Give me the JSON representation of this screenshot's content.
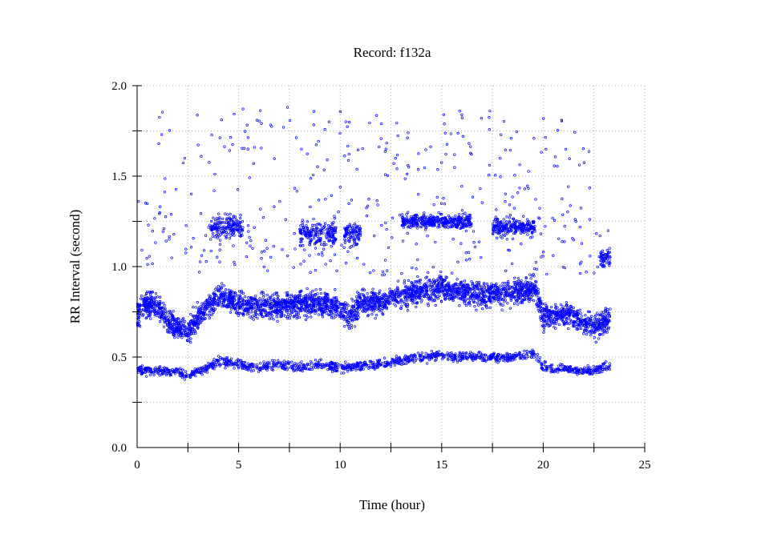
{
  "chart_data": {
    "type": "scatter",
    "title": "Record:  f132a",
    "xlabel": "Time (hour)",
    "ylabel": "RR Interval (second)",
    "xlim": [
      0,
      25
    ],
    "ylim": [
      0.0,
      2.0
    ],
    "x_ticks": [
      0,
      5,
      10,
      15,
      20,
      25
    ],
    "x_tick_labels": [
      "0",
      "5",
      "10",
      "15",
      "20",
      "25"
    ],
    "y_ticks": [
      0.0,
      0.5,
      1.0,
      1.5,
      2.0
    ],
    "y_tick_labels": [
      "0.0",
      "0.5",
      "1.0",
      "1.5",
      "2.0"
    ],
    "grid": true,
    "marker": "open-circle",
    "series_color": "#0000ff",
    "record_span_hours": [
      0,
      23.3
    ],
    "main_band": [
      [
        0,
        0.72
      ],
      [
        0.5,
        0.8
      ],
      [
        1.0,
        0.78
      ],
      [
        1.5,
        0.7
      ],
      [
        2.0,
        0.66
      ],
      [
        2.5,
        0.64
      ],
      [
        3.0,
        0.72
      ],
      [
        3.5,
        0.78
      ],
      [
        4.0,
        0.84
      ],
      [
        4.5,
        0.82
      ],
      [
        5.0,
        0.8
      ],
      [
        5.5,
        0.78
      ],
      [
        6.0,
        0.78
      ],
      [
        7.0,
        0.78
      ],
      [
        8.0,
        0.8
      ],
      [
        9.0,
        0.8
      ],
      [
        10.0,
        0.78
      ],
      [
        10.5,
        0.72
      ],
      [
        11.0,
        0.8
      ],
      [
        12.0,
        0.8
      ],
      [
        13.0,
        0.84
      ],
      [
        14.0,
        0.87
      ],
      [
        15.0,
        0.88
      ],
      [
        16.0,
        0.86
      ],
      [
        17.0,
        0.84
      ],
      [
        18.0,
        0.85
      ],
      [
        19.0,
        0.86
      ],
      [
        19.6,
        0.88
      ],
      [
        20.0,
        0.72
      ],
      [
        21.0,
        0.74
      ],
      [
        22.0,
        0.7
      ],
      [
        22.5,
        0.66
      ],
      [
        23.3,
        0.72
      ]
    ],
    "lower_band": [
      [
        0,
        0.43
      ],
      [
        2.0,
        0.42
      ],
      [
        2.5,
        0.4
      ],
      [
        3.5,
        0.44
      ],
      [
        4.0,
        0.48
      ],
      [
        5.0,
        0.46
      ],
      [
        6.0,
        0.44
      ],
      [
        7.0,
        0.46
      ],
      [
        8.0,
        0.44
      ],
      [
        9.0,
        0.46
      ],
      [
        10.0,
        0.44
      ],
      [
        11.0,
        0.45
      ],
      [
        12.0,
        0.46
      ],
      [
        13.0,
        0.48
      ],
      [
        14.0,
        0.5
      ],
      [
        15.0,
        0.51
      ],
      [
        16.0,
        0.5
      ],
      [
        17.0,
        0.5
      ],
      [
        18.0,
        0.5
      ],
      [
        19.0,
        0.51
      ],
      [
        19.6,
        0.52
      ],
      [
        20.0,
        0.44
      ],
      [
        21.0,
        0.44
      ],
      [
        22.0,
        0.42
      ],
      [
        23.3,
        0.45
      ]
    ],
    "upper_clusters": [
      {
        "x_range": [
          3.6,
          5.2
        ],
        "y_center": 1.22,
        "spread": 0.1
      },
      {
        "x_range": [
          8.0,
          9.8
        ],
        "y_center": 1.18,
        "spread": 0.1
      },
      {
        "x_range": [
          10.2,
          11.0
        ],
        "y_center": 1.18,
        "spread": 0.1
      },
      {
        "x_range": [
          13.0,
          16.5
        ],
        "y_center": 1.25,
        "spread": 0.06
      },
      {
        "x_range": [
          17.5,
          19.6
        ],
        "y_center": 1.22,
        "spread": 0.08
      },
      {
        "x_range": [
          22.8,
          23.3
        ],
        "y_center": 1.05,
        "spread": 0.08
      }
    ],
    "top_scatter": {
      "x_range": [
        1.0,
        22.5
      ],
      "y_range": [
        1.48,
        1.88
      ]
    }
  }
}
